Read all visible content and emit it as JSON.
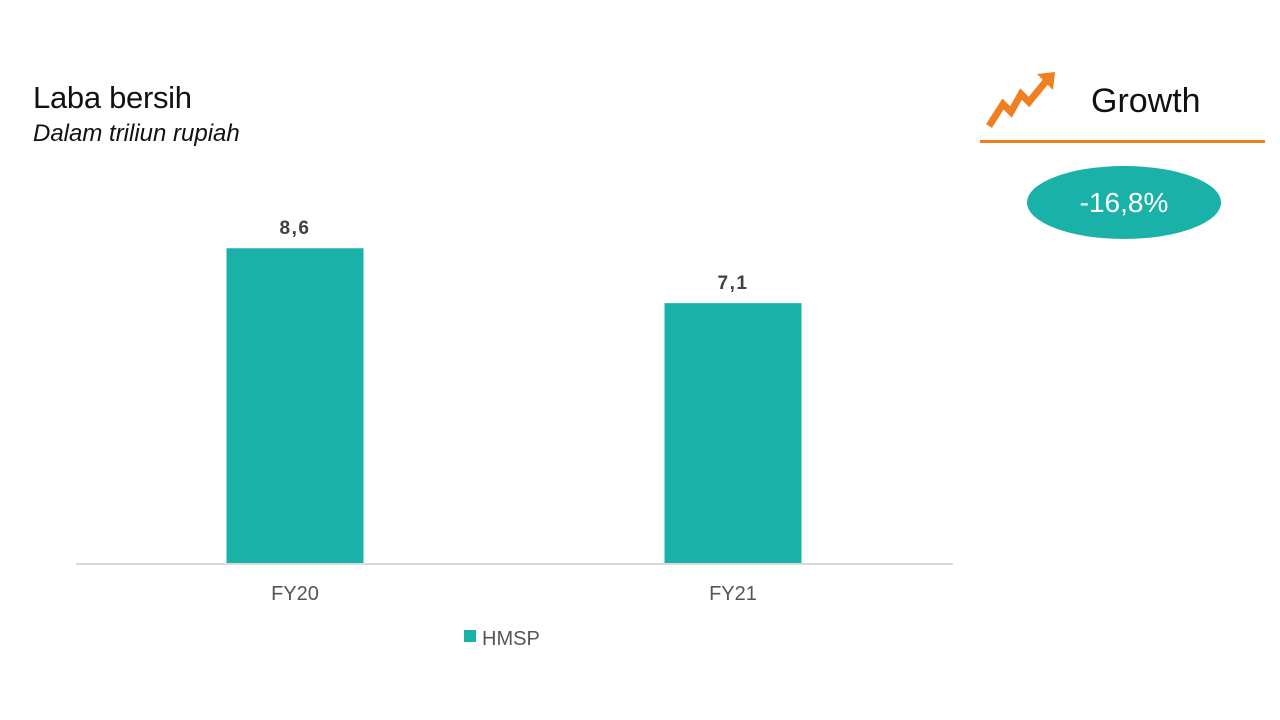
{
  "slide": {
    "title": "Laba bersih",
    "subtitle": "Dalam triliun rupiah"
  },
  "growth": {
    "label": "Growth",
    "value": "-16,8%",
    "icon": "trend-up-arrow-icon",
    "accent_color": "#f07f22",
    "badge_color": "#1ab2a8"
  },
  "chart_data": {
    "type": "bar",
    "categories": [
      "FY20",
      "FY21"
    ],
    "series": [
      {
        "name": "HMSP",
        "values": [
          8.6,
          7.1
        ],
        "labels": [
          "8,6",
          "7,1"
        ],
        "color": "#1ab2a8"
      }
    ],
    "ylim": [
      0,
      10
    ],
    "grid": false,
    "legend": "bottom"
  }
}
